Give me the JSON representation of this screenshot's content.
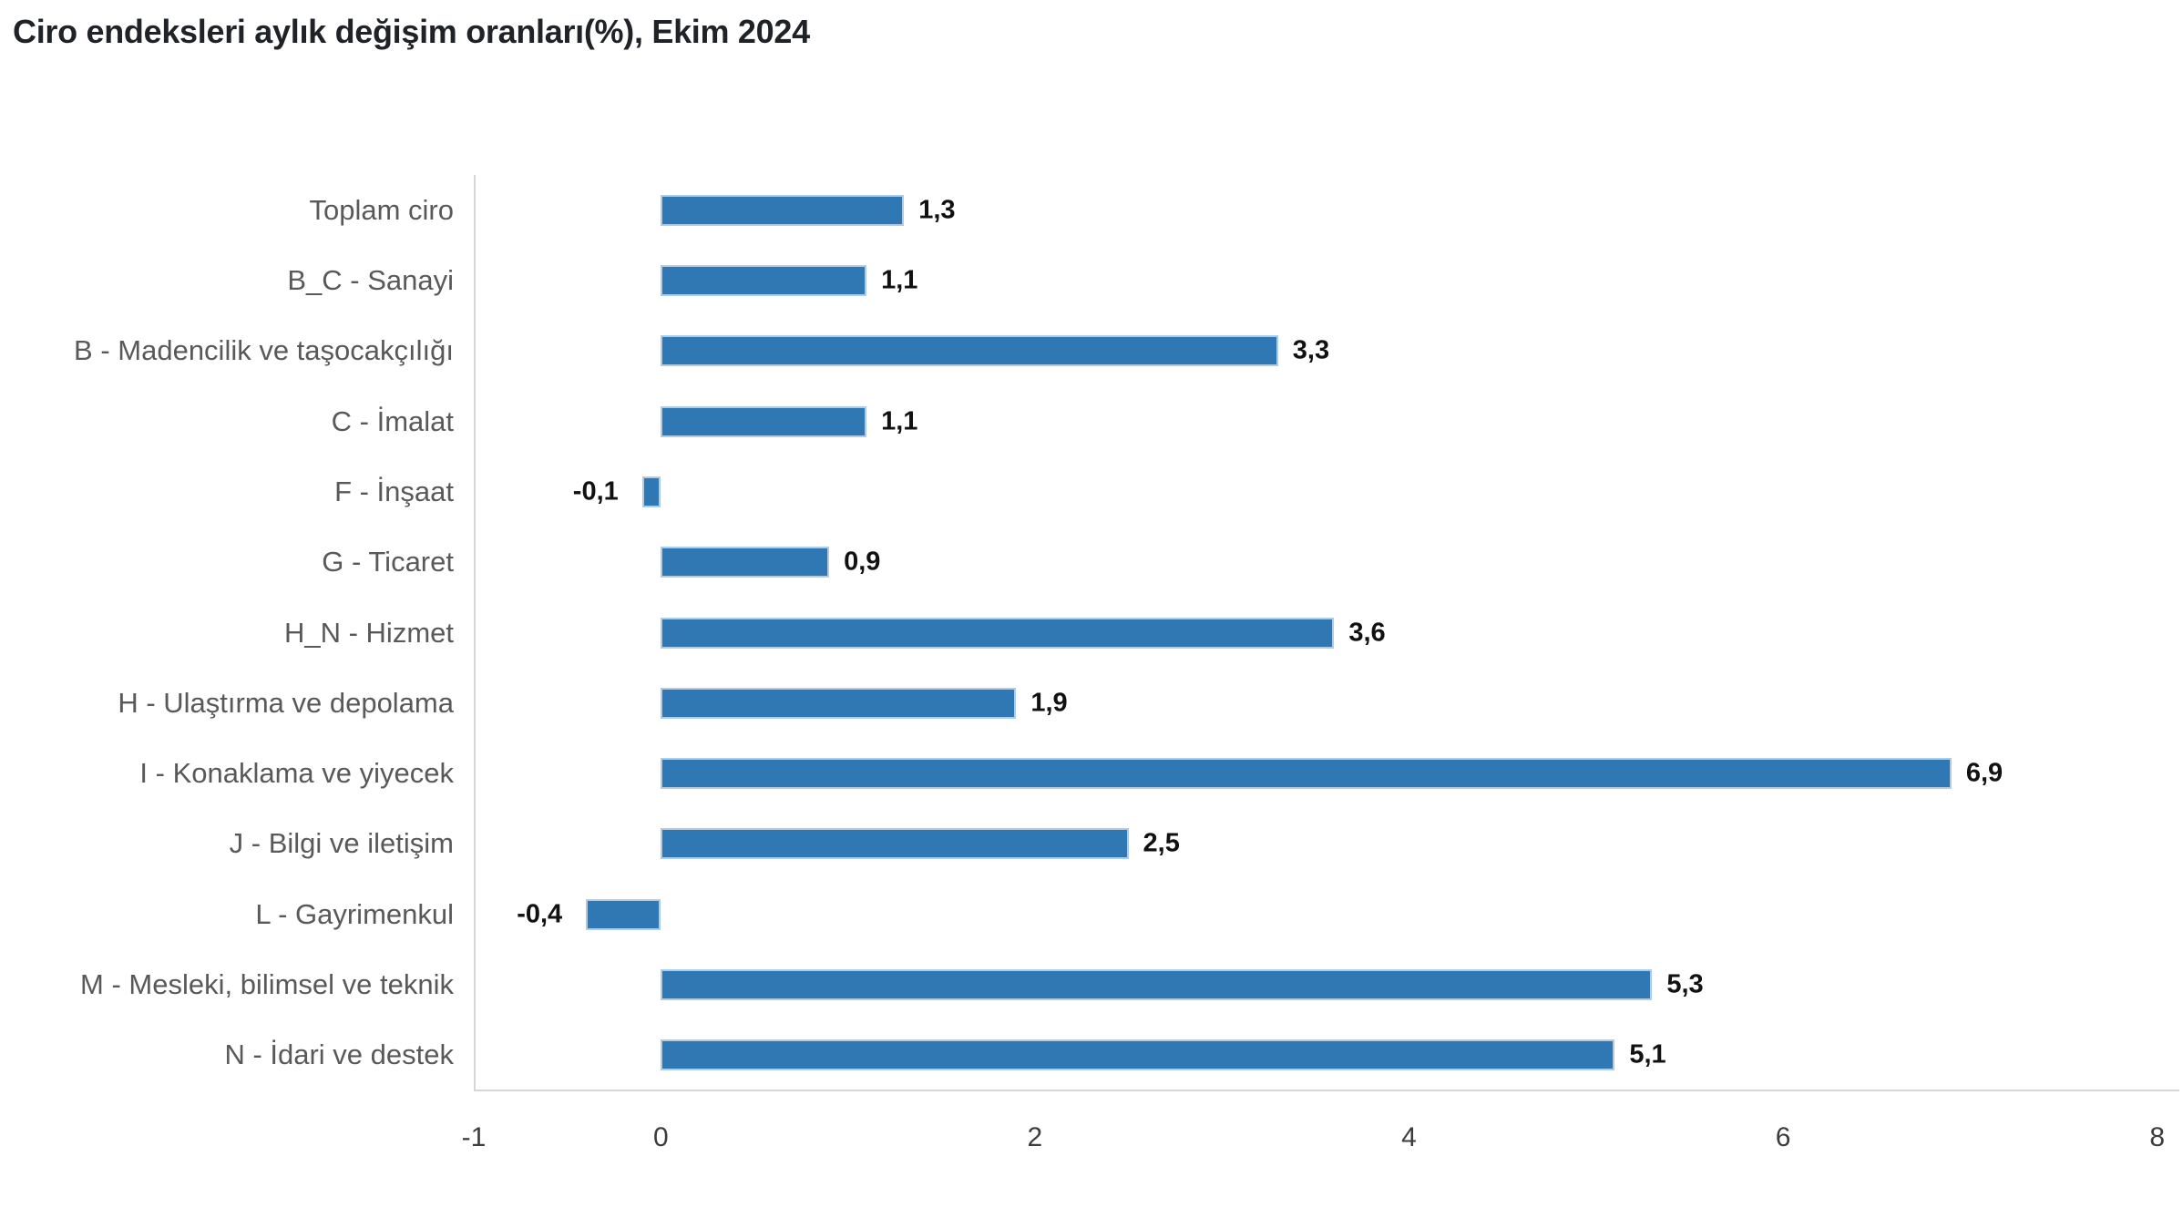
{
  "title": "Ciro endeksleri aylık değişim oranları(%), Ekim 2024",
  "chart_data": {
    "type": "bar",
    "orientation": "horizontal",
    "title": "Ciro endeksleri aylık değişim oranları(%), Ekim 2024",
    "categories": [
      "Toplam ciro",
      "B_C - Sanayi",
      "B - Madencilik ve taşocakçılığı",
      "C - İmalat",
      "F - İnşaat",
      "G - Ticaret",
      "H_N - Hizmet",
      "H - Ulaştırma ve depolama",
      "I - Konaklama ve yiyecek",
      "J - Bilgi ve iletişim",
      "L - Gayrimenkul",
      "M - Mesleki, bilimsel ve teknik",
      "N - İdari ve destek"
    ],
    "values": [
      1.3,
      1.1,
      3.3,
      1.1,
      -0.1,
      0.9,
      3.6,
      1.9,
      6.9,
      2.5,
      -0.4,
      5.3,
      5.1
    ],
    "value_labels": [
      "1,3",
      "1,1",
      "3,3",
      "1,1",
      "-0,1",
      "0,9",
      "3,6",
      "1,9",
      "6,9",
      "2,5",
      "-0,4",
      "5,3",
      "5,1"
    ],
    "x_ticks": [
      -1,
      0,
      2,
      4,
      6,
      8
    ],
    "x_tick_labels": [
      "-1",
      "0",
      "2",
      "4",
      "6",
      "8"
    ],
    "xlim": [
      -1,
      8
    ],
    "xlabel": "",
    "ylabel": "",
    "grid": false,
    "legend": false,
    "bar_color": "#2F78B4",
    "bar_border_color": "#AECBE8",
    "axis_line_color": "#D6D6D6",
    "category_label_color": "#595959",
    "value_label_color": "#111111",
    "tick_label_color": "#3C3C3C",
    "title_color": "#1F2328",
    "background_color": "#FFFFFF"
  }
}
